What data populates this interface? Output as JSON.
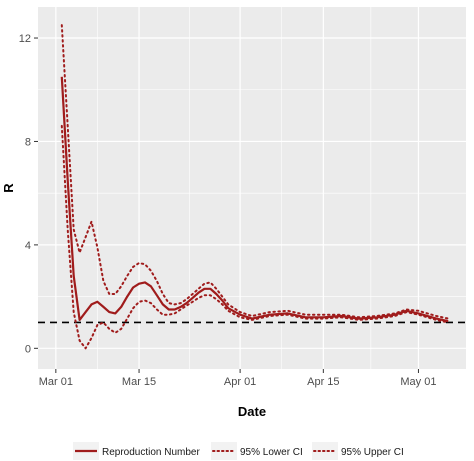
{
  "chart_data": {
    "type": "line",
    "xlabel": "Date",
    "ylabel": "R",
    "x_axis_type": "date",
    "xlim": [
      "2020-02-27",
      "2020-05-09"
    ],
    "ylim": [
      -0.8,
      13.2
    ],
    "x_ticks": [
      {
        "date": "2020-03-01",
        "label": "Mar 01"
      },
      {
        "date": "2020-03-15",
        "label": "Mar 15"
      },
      {
        "date": "2020-04-01",
        "label": "Apr 01"
      },
      {
        "date": "2020-04-15",
        "label": "Apr 15"
      },
      {
        "date": "2020-05-01",
        "label": "May 01"
      }
    ],
    "y_ticks": [
      {
        "value": 0,
        "label": "0"
      },
      {
        "value": 4,
        "label": "4"
      },
      {
        "value": 8,
        "label": "8"
      },
      {
        "value": 12,
        "label": "12"
      }
    ],
    "reference_line": {
      "value": 1,
      "style": "dashed",
      "color": "#000000"
    },
    "grid": true,
    "panel_background": "#ebebeb",
    "grid_color": "#ffffff",
    "legend_position": "bottom",
    "series": [
      {
        "name": "Reproduction Number",
        "style": "solid",
        "color": "#a01c1c",
        "points": [
          [
            "2020-03-02",
            10.5
          ],
          [
            "2020-03-03",
            6.5
          ],
          [
            "2020-03-04",
            2.8
          ],
          [
            "2020-03-05",
            1.1
          ],
          [
            "2020-03-06",
            1.4
          ],
          [
            "2020-03-07",
            1.7
          ],
          [
            "2020-03-08",
            1.8
          ],
          [
            "2020-03-09",
            1.6
          ],
          [
            "2020-03-10",
            1.4
          ],
          [
            "2020-03-11",
            1.35
          ],
          [
            "2020-03-12",
            1.6
          ],
          [
            "2020-03-13",
            2.0
          ],
          [
            "2020-03-14",
            2.35
          ],
          [
            "2020-03-15",
            2.5
          ],
          [
            "2020-03-16",
            2.55
          ],
          [
            "2020-03-17",
            2.4
          ],
          [
            "2020-03-18",
            2.05
          ],
          [
            "2020-03-19",
            1.7
          ],
          [
            "2020-03-20",
            1.5
          ],
          [
            "2020-03-21",
            1.5
          ],
          [
            "2020-03-22",
            1.6
          ],
          [
            "2020-03-23",
            1.75
          ],
          [
            "2020-03-24",
            1.95
          ],
          [
            "2020-03-25",
            2.15
          ],
          [
            "2020-03-26",
            2.3
          ],
          [
            "2020-03-27",
            2.3
          ],
          [
            "2020-03-28",
            2.1
          ],
          [
            "2020-03-29",
            1.85
          ],
          [
            "2020-03-30",
            1.55
          ],
          [
            "2020-04-01",
            1.3
          ],
          [
            "2020-04-03",
            1.15
          ],
          [
            "2020-04-06",
            1.3
          ],
          [
            "2020-04-09",
            1.35
          ],
          [
            "2020-04-12",
            1.2
          ],
          [
            "2020-04-15",
            1.2
          ],
          [
            "2020-04-18",
            1.25
          ],
          [
            "2020-04-21",
            1.15
          ],
          [
            "2020-04-24",
            1.2
          ],
          [
            "2020-04-27",
            1.3
          ],
          [
            "2020-04-29",
            1.45
          ],
          [
            "2020-05-01",
            1.35
          ],
          [
            "2020-05-04",
            1.15
          ],
          [
            "2020-05-06",
            1.05
          ]
        ]
      },
      {
        "name": "95% Lower CI",
        "style": "dotted",
        "color": "#a01c1c",
        "points": [
          [
            "2020-03-02",
            8.6
          ],
          [
            "2020-03-03",
            4.6
          ],
          [
            "2020-03-04",
            1.4
          ],
          [
            "2020-03-05",
            0.3
          ],
          [
            "2020-03-06",
            0.0
          ],
          [
            "2020-03-07",
            0.4
          ],
          [
            "2020-03-08",
            0.9
          ],
          [
            "2020-03-09",
            1.0
          ],
          [
            "2020-03-10",
            0.75
          ],
          [
            "2020-03-11",
            0.6
          ],
          [
            "2020-03-12",
            0.75
          ],
          [
            "2020-03-13",
            1.15
          ],
          [
            "2020-03-14",
            1.55
          ],
          [
            "2020-03-15",
            1.8
          ],
          [
            "2020-03-16",
            1.85
          ],
          [
            "2020-03-17",
            1.75
          ],
          [
            "2020-03-18",
            1.5
          ],
          [
            "2020-03-19",
            1.3
          ],
          [
            "2020-03-20",
            1.3
          ],
          [
            "2020-03-21",
            1.35
          ],
          [
            "2020-03-22",
            1.5
          ],
          [
            "2020-03-23",
            1.65
          ],
          [
            "2020-03-24",
            1.8
          ],
          [
            "2020-03-25",
            1.95
          ],
          [
            "2020-03-26",
            2.05
          ],
          [
            "2020-03-27",
            2.05
          ],
          [
            "2020-03-28",
            1.9
          ],
          [
            "2020-03-29",
            1.7
          ],
          [
            "2020-03-30",
            1.45
          ],
          [
            "2020-04-01",
            1.2
          ],
          [
            "2020-04-03",
            1.1
          ],
          [
            "2020-04-06",
            1.25
          ],
          [
            "2020-04-09",
            1.3
          ],
          [
            "2020-04-12",
            1.15
          ],
          [
            "2020-04-15",
            1.15
          ],
          [
            "2020-04-18",
            1.2
          ],
          [
            "2020-04-21",
            1.1
          ],
          [
            "2020-04-24",
            1.15
          ],
          [
            "2020-04-27",
            1.25
          ],
          [
            "2020-04-29",
            1.4
          ],
          [
            "2020-05-01",
            1.3
          ],
          [
            "2020-05-04",
            1.1
          ],
          [
            "2020-05-06",
            1.0
          ]
        ]
      },
      {
        "name": "95% Upper CI",
        "style": "dotted",
        "color": "#a01c1c",
        "points": [
          [
            "2020-03-02",
            12.5
          ],
          [
            "2020-03-03",
            8.6
          ],
          [
            "2020-03-04",
            4.6
          ],
          [
            "2020-03-05",
            3.7
          ],
          [
            "2020-03-06",
            4.3
          ],
          [
            "2020-03-07",
            4.9
          ],
          [
            "2020-03-08",
            3.9
          ],
          [
            "2020-03-09",
            2.6
          ],
          [
            "2020-03-10",
            2.1
          ],
          [
            "2020-03-11",
            2.1
          ],
          [
            "2020-03-12",
            2.4
          ],
          [
            "2020-03-13",
            2.8
          ],
          [
            "2020-03-14",
            3.15
          ],
          [
            "2020-03-15",
            3.3
          ],
          [
            "2020-03-16",
            3.25
          ],
          [
            "2020-03-17",
            3.0
          ],
          [
            "2020-03-18",
            2.6
          ],
          [
            "2020-03-19",
            2.1
          ],
          [
            "2020-03-20",
            1.75
          ],
          [
            "2020-03-21",
            1.7
          ],
          [
            "2020-03-22",
            1.75
          ],
          [
            "2020-03-23",
            1.9
          ],
          [
            "2020-03-24",
            2.1
          ],
          [
            "2020-03-25",
            2.3
          ],
          [
            "2020-03-26",
            2.5
          ],
          [
            "2020-03-27",
            2.55
          ],
          [
            "2020-03-28",
            2.3
          ],
          [
            "2020-03-29",
            2.0
          ],
          [
            "2020-03-30",
            1.7
          ],
          [
            "2020-04-01",
            1.4
          ],
          [
            "2020-04-03",
            1.25
          ],
          [
            "2020-04-06",
            1.4
          ],
          [
            "2020-04-09",
            1.45
          ],
          [
            "2020-04-12",
            1.3
          ],
          [
            "2020-04-15",
            1.3
          ],
          [
            "2020-04-18",
            1.3
          ],
          [
            "2020-04-21",
            1.2
          ],
          [
            "2020-04-24",
            1.25
          ],
          [
            "2020-04-27",
            1.35
          ],
          [
            "2020-04-29",
            1.5
          ],
          [
            "2020-05-01",
            1.45
          ],
          [
            "2020-05-04",
            1.25
          ],
          [
            "2020-05-06",
            1.15
          ]
        ]
      }
    ]
  }
}
